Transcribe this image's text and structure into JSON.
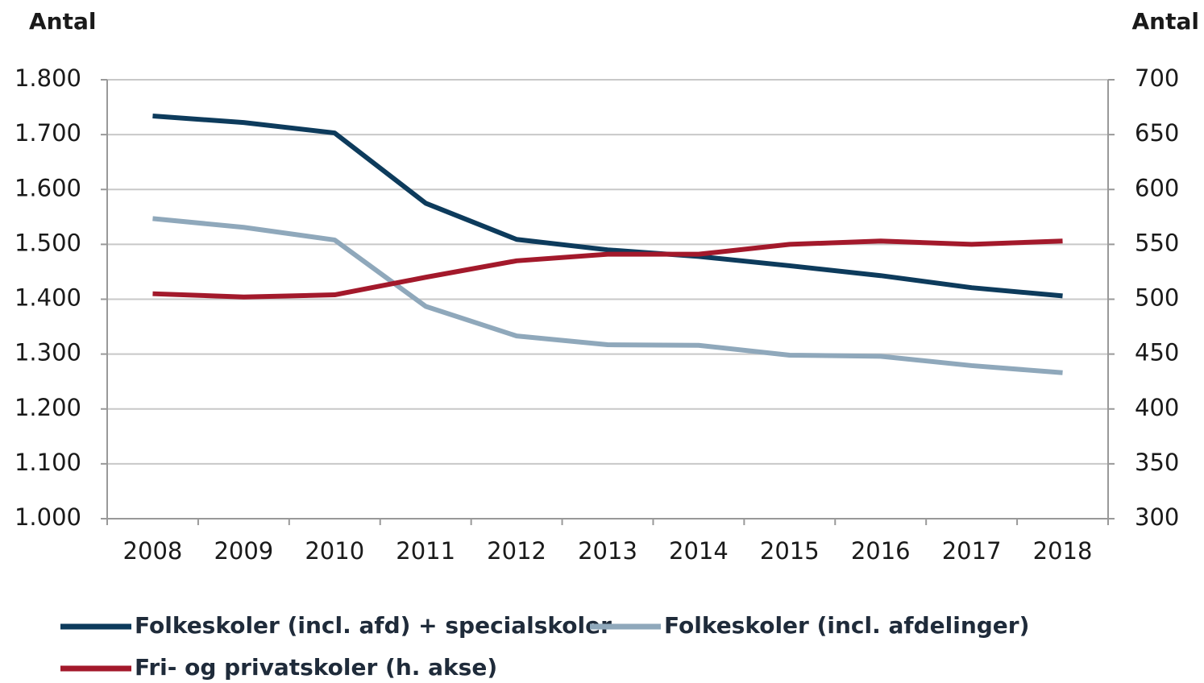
{
  "chart_data": {
    "type": "line",
    "y_label": "Antal",
    "y2_label": "Antal",
    "categories": [
      "2008",
      "2009",
      "2010",
      "2011",
      "2012",
      "2013",
      "2014",
      "2015",
      "2016",
      "2017",
      "2018"
    ],
    "series": [
      {
        "name": "Folkeskoler (incl. afd) + specialskoler",
        "color": "#0d3b5c",
        "values": [
          1734,
          1722,
          1703,
          1575,
          1509,
          1490,
          1478,
          1461,
          1443,
          1421,
          1406
        ]
      },
      {
        "name": "Folkeskoler (incl. afdelinger)",
        "color": "#8fa8bb",
        "values": [
          1547,
          1531,
          1508,
          1387,
          1333,
          1317,
          1316,
          1298,
          1296,
          1279,
          1266
        ]
      },
      {
        "name": "Fri- og privatskoler (h. akse)",
        "color": "#a3192b",
        "axis": "y2",
        "values": [
          505,
          502,
          504,
          520,
          535,
          541,
          541,
          550,
          553,
          550,
          553
        ]
      }
    ],
    "ylim": [
      1000,
      1800
    ],
    "yticks": [
      {
        "value": 1000,
        "label": "1.000"
      },
      {
        "value": 1100,
        "label": "1.100"
      },
      {
        "value": 1200,
        "label": "1.200"
      },
      {
        "value": 1300,
        "label": "1.300"
      },
      {
        "value": 1400,
        "label": "1.400"
      },
      {
        "value": 1500,
        "label": "1.500"
      },
      {
        "value": 1600,
        "label": "1.600"
      },
      {
        "value": 1700,
        "label": "1.700"
      },
      {
        "value": 1800,
        "label": "1.800"
      }
    ],
    "y2lim": [
      300,
      700
    ],
    "y2ticks": [
      300,
      350,
      400,
      450,
      500,
      550,
      600,
      650,
      700
    ],
    "grid": true
  }
}
